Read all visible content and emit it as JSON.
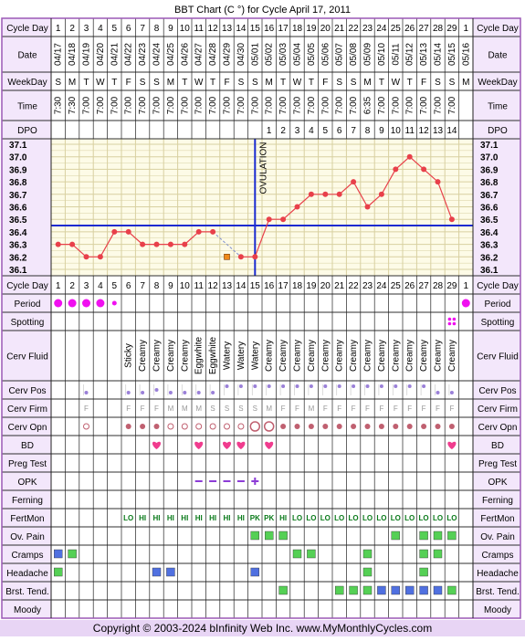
{
  "title": "BBT Chart (C °) for Cycle April 17, 2011",
  "copyright": "Copyright © 2003-2024 bInfinity Web Inc.    www.MyMonthlyCycles.com",
  "ovulation_label": "OVULATION",
  "row_labels": {
    "cycle_day": "Cycle Day",
    "date": "Date",
    "weekday": "WeekDay",
    "time": "Time",
    "dpo": "DPO",
    "period": "Period",
    "spotting": "Spotting",
    "cerv_fluid": "Cerv Fluid",
    "cerv_pos": "Cerv Pos",
    "cerv_firm": "Cerv Firm",
    "cerv_opn": "Cerv Opn",
    "bd": "BD",
    "preg_test": "Preg Test",
    "opk": "OPK",
    "ferning": "Ferning",
    "fertmon": "FertMon",
    "ov_pain": "Ov. Pain",
    "cramps": "Cramps",
    "headache": "Headache",
    "brst_tend": "Brst. Tend.",
    "moody": "Moody"
  },
  "colors": {
    "border": "#9b59b6",
    "label_bg": "#f3e7fb",
    "line": "#e8404a",
    "cover": "#1a2bd0",
    "ovulation": "#1a2bd0",
    "grid": "#d8d0a0",
    "chart_bg": "#fdfbe7",
    "heart": "#f03c8e",
    "period": "#f010f0",
    "dot": "#c06070",
    "fertmon": "#0a7a1a",
    "green_box": "#55d055",
    "blue_box": "#5070e0",
    "opk": "#8c3cd6"
  },
  "days": [
    "1",
    "2",
    "3",
    "4",
    "5",
    "6",
    "7",
    "8",
    "9",
    "10",
    "11",
    "12",
    "13",
    "14",
    "15",
    "16",
    "17",
    "18",
    "19",
    "20",
    "21",
    "22",
    "23",
    "24",
    "25",
    "26",
    "27",
    "28",
    "29",
    "1"
  ],
  "dates": [
    "04/17",
    "04/18",
    "04/19",
    "04/20",
    "04/21",
    "04/22",
    "04/23",
    "04/24",
    "04/25",
    "04/26",
    "04/27",
    "04/28",
    "04/29",
    "04/30",
    "05/01",
    "05/02",
    "05/03",
    "05/04",
    "05/05",
    "05/06",
    "05/07",
    "05/08",
    "05/09",
    "05/10",
    "05/11",
    "05/12",
    "05/13",
    "05/14",
    "05/15",
    "05/16"
  ],
  "weekdays": [
    "S",
    "M",
    "T",
    "W",
    "T",
    "F",
    "S",
    "S",
    "M",
    "T",
    "W",
    "T",
    "F",
    "S",
    "S",
    "M",
    "T",
    "W",
    "T",
    "F",
    "S",
    "S",
    "M",
    "T",
    "W",
    "T",
    "F",
    "S",
    "S",
    "M"
  ],
  "times": [
    "7:30",
    "7:30",
    "7:00",
    "7:00",
    "7:00",
    "7:00",
    "7:00",
    "7:00",
    "7:00",
    "7:00",
    "7:00",
    "7:00",
    "7:00",
    "7:00",
    "7:00",
    "7:00",
    "7:00",
    "7:00",
    "7:00",
    "7:00",
    "7:00",
    "7:00",
    "6:35",
    "7:00",
    "7:00",
    "7:00",
    "7:00",
    "7:00",
    "7:00",
    ""
  ],
  "dpo": [
    "",
    "",
    "",
    "",
    "",
    "",
    "",
    "",
    "",
    "",
    "",
    "",
    "",
    "",
    "",
    "1",
    "2",
    "3",
    "4",
    "5",
    "6",
    "7",
    "8",
    "9",
    "10",
    "11",
    "12",
    "13",
    "14",
    ""
  ],
  "cerv_fluid": [
    "",
    "",
    "",
    "",
    "",
    "Sticky",
    "Creamy",
    "Creamy",
    "Creamy",
    "Creamy",
    "Eggwhite",
    "Eggwhite",
    "Watery",
    "Watery",
    "Watery",
    "Creamy",
    "Creamy",
    "Creamy",
    "Creamy",
    "Creamy",
    "Creamy",
    "Creamy",
    "Creamy",
    "Creamy",
    "Creamy",
    "Creamy",
    "Creamy",
    "Creamy",
    "Creamy",
    ""
  ],
  "cerv_firm": [
    "",
    "",
    "F",
    "",
    "",
    "F",
    "F",
    "F",
    "M",
    "M",
    "M",
    "S",
    "S",
    "S",
    "S",
    "M",
    "F",
    "F",
    "M",
    "F",
    "F",
    "F",
    "F",
    "F",
    "F",
    "F",
    "F",
    "F",
    "F",
    ""
  ],
  "fertmon": [
    "",
    "",
    "",
    "",
    "",
    "LO",
    "HI",
    "HI",
    "HI",
    "HI",
    "HI",
    "HI",
    "HI",
    "HI",
    "PK",
    "PK",
    "HI",
    "LO",
    "LO",
    "LO",
    "LO",
    "LO",
    "LO",
    "LO",
    "LO",
    "LO",
    "LO",
    "LO",
    "LO",
    ""
  ],
  "period": [
    1,
    1,
    1,
    1,
    0.5,
    0,
    0,
    0,
    0,
    0,
    0,
    0,
    0,
    0,
    0,
    0,
    0,
    0,
    0,
    0,
    0,
    0,
    0,
    0,
    0,
    0,
    0,
    0,
    0,
    1
  ],
  "spotting": [
    0,
    0,
    0,
    0,
    0,
    0,
    0,
    0,
    0,
    0,
    0,
    0,
    0,
    0,
    0,
    0,
    0,
    0,
    0,
    0,
    0,
    0,
    0,
    0,
    0,
    0,
    0,
    0,
    1,
    0
  ],
  "cerv_pos": [
    "",
    "",
    "s",
    "",
    "",
    "s",
    "s",
    "m",
    "s",
    "s",
    "s",
    "s",
    "h",
    "h",
    "h",
    "h",
    "h",
    "h",
    "h",
    "h",
    "h",
    "h",
    "h",
    "h",
    "h",
    "h",
    "h",
    "s",
    "s",
    ""
  ],
  "cerv_opn": [
    "",
    "",
    "o",
    "",
    "",
    "d",
    "d",
    "d",
    "o",
    "o",
    "o",
    "o",
    "o",
    "o",
    "O",
    "O",
    "d",
    "d",
    "d",
    "d",
    "d",
    "d",
    "d",
    "d",
    "d",
    "d",
    "d",
    "d",
    "d",
    ""
  ],
  "bd": [
    0,
    0,
    0,
    0,
    0,
    0,
    0,
    1,
    0,
    0,
    1,
    0,
    1,
    1,
    0,
    1,
    0,
    0,
    0,
    0,
    0,
    0,
    0,
    0,
    0,
    0,
    0,
    0,
    1,
    0
  ],
  "opk": [
    "",
    "",
    "",
    "",
    "",
    "",
    "",
    "",
    "",
    "",
    "-",
    "-",
    "-",
    "-",
    "+",
    "",
    "",
    "",
    "",
    "",
    "",
    "",
    "",
    "",
    "",
    "",
    "",
    "",
    "",
    ""
  ],
  "ov_pain": [
    0,
    0,
    0,
    0,
    0,
    0,
    0,
    0,
    0,
    0,
    0,
    0,
    0,
    0,
    1,
    1,
    1,
    0,
    0,
    0,
    0,
    0,
    0,
    0,
    1,
    0,
    1,
    1,
    1,
    0
  ],
  "cramps": [
    2,
    1,
    0,
    0,
    0,
    0,
    0,
    0,
    0,
    0,
    0,
    0,
    0,
    0,
    0,
    0,
    0,
    1,
    1,
    0,
    0,
    0,
    1,
    0,
    0,
    0,
    1,
    1,
    0,
    0
  ],
  "headache": [
    1,
    0,
    0,
    0,
    0,
    0,
    0,
    2,
    2,
    0,
    0,
    0,
    0,
    0,
    2,
    0,
    0,
    0,
    0,
    0,
    0,
    0,
    1,
    0,
    0,
    0,
    1,
    0,
    0,
    0
  ],
  "brst_tend": [
    0,
    0,
    0,
    0,
    0,
    0,
    0,
    0,
    0,
    0,
    0,
    0,
    0,
    0,
    0,
    0,
    1,
    0,
    0,
    0,
    1,
    1,
    1,
    2,
    2,
    2,
    2,
    2,
    1,
    0
  ],
  "chart_data": {
    "type": "line",
    "ylabel": "",
    "ylim": [
      36.1,
      37.1
    ],
    "yticks": [
      "37.1",
      "37.0",
      "36.9",
      "36.8",
      "36.7",
      "36.6",
      "36.5",
      "36.4",
      "36.3",
      "36.2",
      "36.1"
    ],
    "coverline": 36.45,
    "ovulation_day": 15,
    "x": [
      1,
      2,
      3,
      4,
      5,
      6,
      7,
      8,
      9,
      10,
      11,
      12,
      13,
      14,
      15,
      16,
      17,
      18,
      19,
      20,
      21,
      22,
      23,
      24,
      25,
      26,
      27,
      28,
      29
    ],
    "temps": [
      36.3,
      36.3,
      36.2,
      36.2,
      36.4,
      36.4,
      36.3,
      36.3,
      36.3,
      36.3,
      36.4,
      36.4,
      null,
      36.2,
      36.2,
      36.5,
      36.5,
      36.6,
      36.7,
      36.7,
      36.7,
      36.8,
      36.6,
      36.7,
      36.9,
      37.0,
      36.9,
      36.8,
      36.5
    ],
    "discarded": [
      {
        "day": 13,
        "temp": 36.2
      }
    ]
  }
}
